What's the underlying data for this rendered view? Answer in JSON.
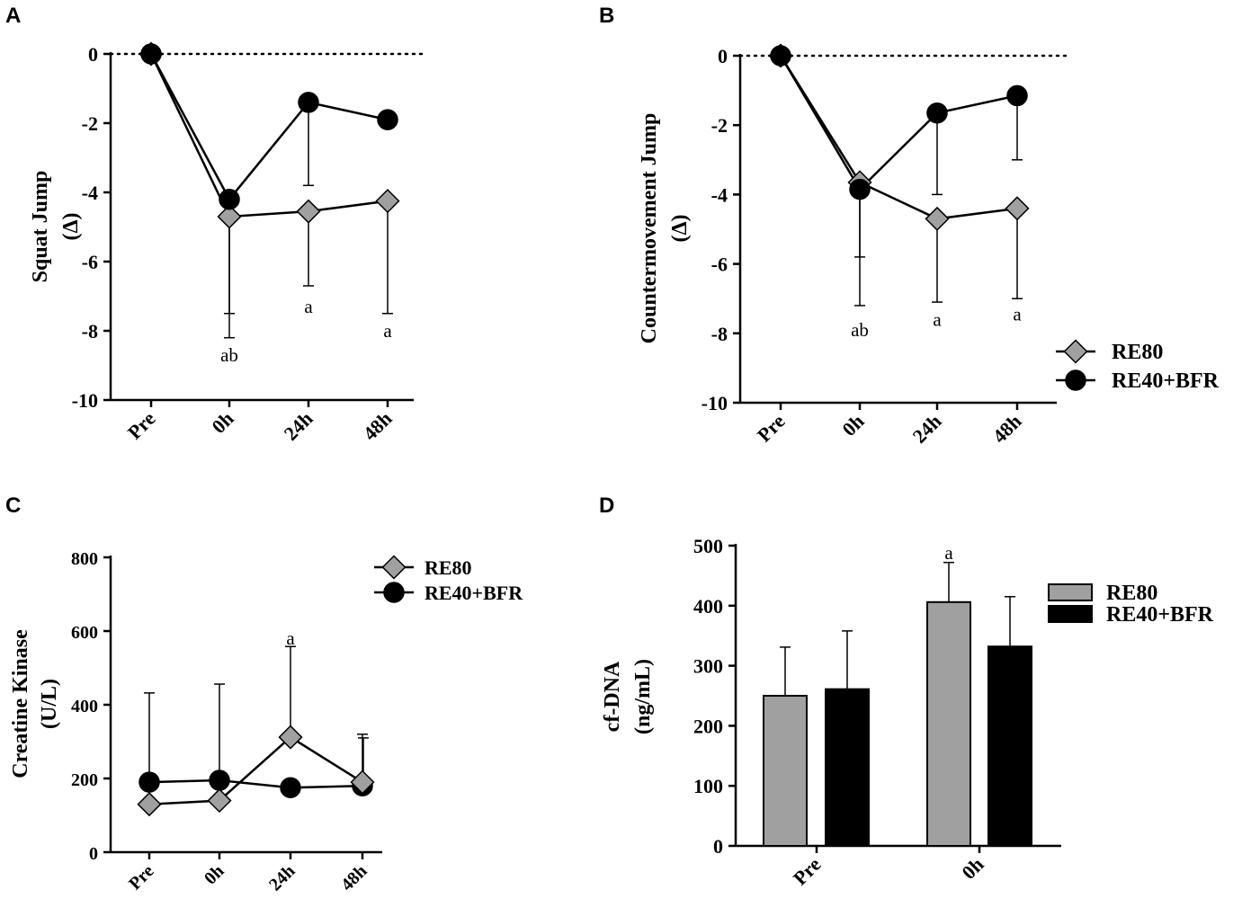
{
  "chart_data": [
    {
      "panel": "A",
      "type": "line",
      "ylabel": [
        "Squat Jump",
        "(Δ)"
      ],
      "ylim": [
        -10,
        0
      ],
      "yticks": [
        0,
        -2,
        -4,
        -6,
        -8,
        -10
      ],
      "yticklabels": [
        "0",
        "-2",
        "-4",
        "-6",
        "-8",
        "-10"
      ],
      "categories": [
        "Pre",
        "0h",
        "24h",
        "48h"
      ],
      "reference_line": 0,
      "series": [
        {
          "name": "RE80",
          "marker": "diamond",
          "color": "#a0a0a0",
          "values": [
            0,
            -4.7,
            -4.55,
            -4.25
          ],
          "err_low": [
            null,
            -8.2,
            -6.7,
            -7.5
          ],
          "err_high": [
            null,
            null,
            null,
            null
          ]
        },
        {
          "name": "RE40+BFR",
          "marker": "circle",
          "color": "#000000",
          "values": [
            0,
            -4.2,
            -1.4,
            -1.9
          ],
          "err_low": [
            null,
            -7.5,
            -3.8,
            null
          ],
          "err_high": [
            null,
            null,
            null,
            null
          ]
        }
      ],
      "annotations": [
        {
          "category": "0h",
          "y": -8.7,
          "text": "ab"
        },
        {
          "category": "24h",
          "y": -7.3,
          "text": "a"
        },
        {
          "category": "48h",
          "y": -8.0,
          "text": "a"
        }
      ]
    },
    {
      "panel": "B",
      "type": "line",
      "ylabel": [
        "Countermovement Jump",
        "(Δ)"
      ],
      "ylim": [
        -10,
        0
      ],
      "yticks": [
        0,
        -2,
        -4,
        -6,
        -8,
        -10
      ],
      "yticklabels": [
        "0",
        "-2",
        "-4",
        "-6",
        "-8",
        "-10"
      ],
      "categories": [
        "Pre",
        "0h",
        "24h",
        "48h"
      ],
      "reference_line": 0,
      "legend": {
        "position": "right",
        "entries": [
          {
            "label": "RE80",
            "marker": "diamond",
            "color": "#a0a0a0"
          },
          {
            "label": "RE40+BFR",
            "marker": "circle",
            "color": "#000000"
          }
        ]
      },
      "series": [
        {
          "name": "RE80",
          "marker": "diamond",
          "color": "#a0a0a0",
          "values": [
            0,
            -3.65,
            -4.7,
            -4.4
          ],
          "err_low": [
            null,
            -7.2,
            -7.1,
            -7.0
          ],
          "err_high": [
            null,
            null,
            null,
            null
          ]
        },
        {
          "name": "RE40+BFR",
          "marker": "circle",
          "color": "#000000",
          "values": [
            0,
            -3.85,
            -1.65,
            -1.15
          ],
          "err_low": [
            null,
            -5.8,
            -4.0,
            -3.0
          ],
          "err_high": [
            null,
            null,
            null,
            null
          ]
        }
      ],
      "annotations": [
        {
          "category": "0h",
          "y": -7.9,
          "text": "ab"
        },
        {
          "category": "24h",
          "y": -7.6,
          "text": "a"
        },
        {
          "category": "48h",
          "y": -7.45,
          "text": "a"
        }
      ]
    },
    {
      "panel": "C",
      "type": "line",
      "ylabel": [
        "Creatine Kinase",
        "(U/L)"
      ],
      "ylim": [
        0,
        800
      ],
      "yticks": [
        0,
        200,
        400,
        600,
        800
      ],
      "yticklabels": [
        "0",
        "200",
        "400",
        "600",
        "800"
      ],
      "categories": [
        "Pre",
        "0h",
        "24h",
        "48h"
      ],
      "legend": {
        "position": "top-right",
        "entries": [
          {
            "label": "RE80",
            "marker": "diamond",
            "color": "#a0a0a0"
          },
          {
            "label": "RE40+BFR",
            "marker": "circle",
            "color": "#000000"
          }
        ]
      },
      "series": [
        {
          "name": "RE80",
          "marker": "diamond",
          "color": "#a0a0a0",
          "values": [
            130,
            140,
            312,
            190
          ],
          "err_low": [
            null,
            null,
            null,
            null
          ],
          "err_high": [
            null,
            null,
            558,
            320
          ]
        },
        {
          "name": "RE40+BFR",
          "marker": "circle",
          "color": "#000000",
          "values": [
            190,
            195,
            175,
            180
          ],
          "err_low": [
            null,
            null,
            null,
            null
          ],
          "err_high": [
            432,
            456,
            null,
            310
          ]
        }
      ],
      "annotations": [
        {
          "category": "24h",
          "y": 580,
          "text": "a"
        }
      ]
    },
    {
      "panel": "D",
      "type": "bar",
      "ylabel": [
        "cf-DNA",
        "(ng/mL)"
      ],
      "ylim": [
        0,
        500
      ],
      "yticks": [
        0,
        100,
        200,
        300,
        400,
        500
      ],
      "yticklabels": [
        "0",
        "100",
        "200",
        "300",
        "400",
        "500"
      ],
      "categories": [
        "Pre",
        "0h"
      ],
      "legend": {
        "position": "right",
        "entries": [
          {
            "label": "RE80",
            "marker": "bar",
            "color": "#a0a0a0"
          },
          {
            "label": "RE40+BFR",
            "marker": "bar",
            "color": "#000000"
          }
        ]
      },
      "series": [
        {
          "name": "RE80",
          "color": "#a0a0a0",
          "values": [
            250,
            406
          ],
          "err_high": [
            331,
            472
          ]
        },
        {
          "name": "RE40+BFR",
          "color": "#000000",
          "values": [
            261,
            332
          ],
          "err_high": [
            358,
            415
          ]
        }
      ],
      "annotations": [
        {
          "category": "0h",
          "series": 0,
          "y": 488,
          "text": "a"
        }
      ]
    }
  ]
}
